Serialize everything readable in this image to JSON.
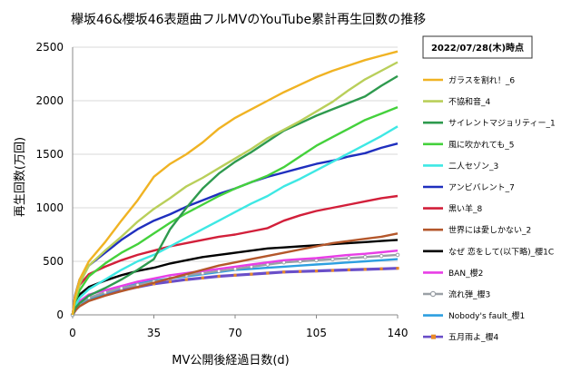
{
  "chart_data": {
    "type": "line",
    "title": "欅坂46&櫻坂46表題曲フルMVのYouTube累計再生回数の推移",
    "xlabel": "MV公開後経過日数(d)",
    "ylabel": "再生回数(万回)",
    "xlim": [
      0,
      140
    ],
    "ylim": [
      0,
      2500
    ],
    "xticks": [
      "0",
      "35",
      "70",
      "105",
      "140"
    ],
    "yticks": [
      "0",
      "500",
      "1000",
      "1500",
      "2000",
      "2500"
    ],
    "grid": true,
    "legend_position": "right",
    "legend_header": "2022/07/28(木)時点",
    "x": [
      0,
      1,
      3,
      7,
      14,
      21,
      28,
      35,
      42,
      49,
      56,
      63,
      70,
      77,
      84,
      91,
      98,
      105,
      112,
      119,
      126,
      133,
      140
    ],
    "series": [
      {
        "name": "ガラスを割れ！_6",
        "color": "#f0b323",
        "marker": "none",
        "values": [
          0,
          170,
          330,
          500,
          680,
          880,
          1070,
          1290,
          1410,
          1500,
          1610,
          1740,
          1840,
          1920,
          2000,
          2080,
          2150,
          2220,
          2280,
          2330,
          2380,
          2420,
          2460
        ]
      },
      {
        "name": "不協和音_4",
        "color": "#b9cf5a",
        "marker": "none",
        "values": [
          0,
          140,
          290,
          460,
          600,
          730,
          870,
          990,
          1090,
          1200,
          1280,
          1370,
          1460,
          1550,
          1650,
          1730,
          1810,
          1900,
          1990,
          2100,
          2200,
          2280,
          2360
        ]
      },
      {
        "name": "サイレントマジョリティー_1",
        "color": "#2e9a4e",
        "marker": "none",
        "values": [
          0,
          60,
          110,
          180,
          250,
          330,
          420,
          520,
          800,
          1000,
          1180,
          1320,
          1430,
          1520,
          1620,
          1720,
          1790,
          1860,
          1920,
          1980,
          2040,
          2140,
          2230
        ]
      },
      {
        "name": "風に吹かれても_5",
        "color": "#44d13c",
        "marker": "none",
        "values": [
          0,
          120,
          230,
          360,
          480,
          580,
          660,
          760,
          860,
          950,
          1030,
          1110,
          1180,
          1240,
          1300,
          1380,
          1480,
          1580,
          1660,
          1740,
          1820,
          1880,
          1940
        ]
      },
      {
        "name": "二人セゾン_3",
        "color": "#3ee8e4",
        "marker": "none",
        "values": [
          0,
          80,
          160,
          240,
          330,
          420,
          500,
          560,
          640,
          720,
          800,
          880,
          960,
          1040,
          1110,
          1200,
          1270,
          1350,
          1430,
          1510,
          1590,
          1670,
          1760
        ]
      },
      {
        "name": "アンビバレント_7",
        "color": "#1f2fbe",
        "marker": "none",
        "values": [
          0,
          180,
          330,
          460,
          580,
          700,
          800,
          880,
          940,
          1010,
          1070,
          1130,
          1180,
          1240,
          1290,
          1330,
          1370,
          1410,
          1440,
          1480,
          1510,
          1560,
          1600
        ]
      },
      {
        "name": "黒い羊_8",
        "color": "#d21f3a",
        "marker": "none",
        "values": [
          0,
          170,
          280,
          380,
          450,
          510,
          560,
          600,
          640,
          670,
          700,
          730,
          750,
          780,
          810,
          880,
          930,
          970,
          1000,
          1030,
          1060,
          1090,
          1110
        ]
      },
      {
        "name": "世界には愛しかない_2",
        "color": "#b4572b",
        "marker": "none",
        "values": [
          0,
          40,
          80,
          130,
          180,
          220,
          260,
          300,
          340,
          380,
          420,
          460,
          490,
          520,
          550,
          580,
          610,
          640,
          670,
          690,
          710,
          730,
          760
        ]
      },
      {
        "name": "なぜ 恋をして(以下略)_櫻1C",
        "color": "#000000",
        "marker": "none",
        "values": [
          0,
          110,
          190,
          260,
          320,
          370,
          410,
          440,
          480,
          510,
          540,
          560,
          580,
          600,
          620,
          630,
          640,
          650,
          660,
          670,
          680,
          690,
          700
        ]
      },
      {
        "name": "BAN_櫻2",
        "color": "#e83ee6",
        "marker": "none",
        "values": [
          0,
          70,
          130,
          190,
          230,
          270,
          310,
          340,
          370,
          390,
          410,
          430,
          450,
          470,
          490,
          510,
          520,
          530,
          545,
          560,
          570,
          585,
          600
        ]
      },
      {
        "name": "流れ弾_櫻3",
        "color": "#9aa0a6",
        "marker": "circle",
        "values": [
          0,
          60,
          110,
          160,
          210,
          250,
          280,
          310,
          340,
          370,
          390,
          410,
          430,
          450,
          470,
          490,
          500,
          510,
          520,
          530,
          540,
          550,
          560
        ]
      },
      {
        "name": "Nobody's fault_櫻1",
        "color": "#2d9fe0",
        "marker": "none",
        "values": [
          0,
          50,
          100,
          150,
          200,
          250,
          290,
          320,
          340,
          360,
          380,
          400,
          420,
          430,
          440,
          450,
          460,
          470,
          480,
          490,
          500,
          510,
          520
        ]
      },
      {
        "name": "五月雨よ_櫻4",
        "color": "#6a4fc8",
        "marker": "square",
        "marker_color": "#e88a2a",
        "values": [
          0,
          40,
          90,
          140,
          190,
          230,
          260,
          290,
          310,
          330,
          345,
          360,
          370,
          380,
          390,
          400,
          405,
          410,
          415,
          420,
          425,
          430,
          435
        ]
      }
    ]
  }
}
